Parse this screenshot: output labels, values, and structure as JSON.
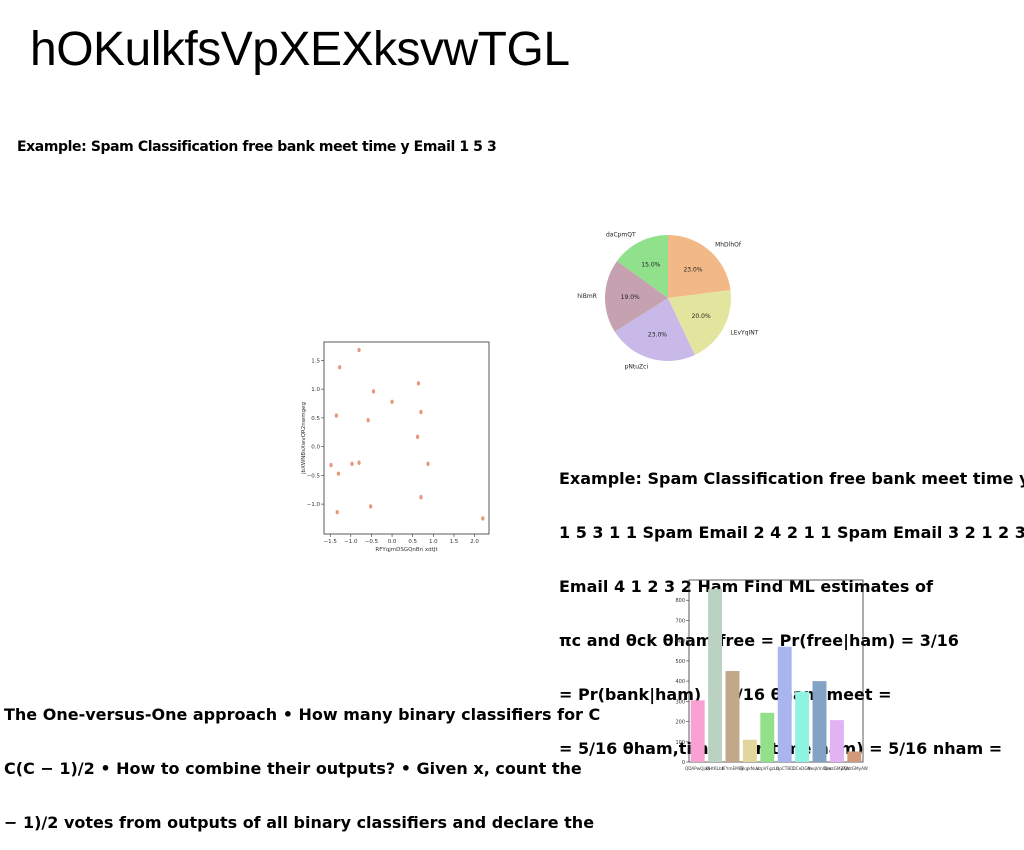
{
  "page": {
    "title": "hOKulkfsVpXEXksvwTGL",
    "subtitle": "Example: Spam Classification free bank meet time y Email 1 5 3"
  },
  "text_blocks": {
    "right": {
      "lines": [
        "Example: Spam Classification free bank meet time y",
        "1 5 3 1 1 Spam Email 2 4 2 1 1 Spam Email 3 2 1 2 3",
        "Email 4 1 2 3 2 Ham Find ML estimates of",
        "πc and θck θham,free = Pr(free|ham) = 3/16",
        "= Pr(bank|ham) = 3/16 θham,meet =",
        "= 5/16 θham,time = Pr(time|ham) = 5/16 nham ="
      ]
    },
    "left": {
      "lines": [
        "The One-versus-One approach • How many binary classifiers for C",
        "C(C − 1)/2 • How to combine their outputs? • Given x, count the",
        "− 1)/2 votes from outputs of all binary classifiers and declare the"
      ]
    }
  },
  "chart_data": [
    {
      "type": "pie",
      "labels": [
        "MhDlhOf",
        "LEvYqINT",
        "pNtuZci",
        "hiBmR",
        "daCpmQT"
      ],
      "values": [
        23.0,
        20.0,
        23.0,
        19.0,
        15.0
      ],
      "pct_labels": [
        "23.0%",
        "20.0%",
        "23.0%",
        "19.0%",
        "15.0%"
      ],
      "colors": [
        "#f2b987",
        "#e3e59f",
        "#c8b9e8",
        "#c6a2b0",
        "#90e08c"
      ],
      "start_angle_deg": 90,
      "direction": "clockwise"
    },
    {
      "type": "scatter",
      "xlabel": "RFYqjmDSGQnBn xdtJt",
      "ylabel": "jbXWNBsXwvQR2nwmgeg",
      "xlim": [
        -1.65,
        2.35
      ],
      "ylim": [
        -1.52,
        1.82
      ],
      "xticks": [
        -1.5,
        -1.0,
        -0.5,
        0.0,
        0.5,
        1.0,
        1.5,
        2.0
      ],
      "xtick_labels": [
        "−1.5",
        "−1.0",
        "−0.5",
        "0.0",
        "0.5",
        "1.0",
        "1.5",
        "2.0"
      ],
      "yticks": [
        -1.0,
        -0.5,
        0.0,
        0.5,
        1.0,
        1.5
      ],
      "ytick_labels": [
        "−1.0",
        "−0.5",
        "0.0",
        "0.5",
        "1.0",
        "1.5"
      ],
      "color": "#e8967a",
      "points": [
        [
          -0.8,
          1.68
        ],
        [
          -1.27,
          1.38
        ],
        [
          -0.45,
          0.96
        ],
        [
          0.0,
          0.78
        ],
        [
          0.64,
          1.1
        ],
        [
          -1.35,
          0.54
        ],
        [
          -0.58,
          0.46
        ],
        [
          0.7,
          0.6
        ],
        [
          0.62,
          0.17
        ],
        [
          -1.48,
          -0.32
        ],
        [
          -0.97,
          -0.3
        ],
        [
          -0.8,
          -0.28
        ],
        [
          0.87,
          -0.3
        ],
        [
          -1.3,
          -0.47
        ],
        [
          0.7,
          -0.88
        ],
        [
          -0.52,
          -1.04
        ],
        [
          -1.33,
          -1.14
        ],
        [
          2.2,
          -1.25
        ]
      ]
    },
    {
      "type": "bar",
      "categories": [
        "QDAPwQjaN",
        "QHtRLbb",
        "IFYmEMBJ",
        "SkgkNuo",
        "VzpVFgzLo",
        "QpCTBD",
        "DCeDGm",
        "NeqVmOsw",
        "QmzGMyAW",
        "ZQnzGMyAW"
      ],
      "tick_labels": [
        "QDAPwQjaN",
        "QHtRLbb",
        "IFYmEMBJ",
        "SkgkNuo",
        "VzpVFgzLo",
        "QpCTBD",
        "DCeDGm",
        "NeqVmOsw",
        "QmzGMyAW",
        "ZQnzGMyAW"
      ],
      "values": [
        305,
        855,
        450,
        110,
        243,
        570,
        348,
        400,
        207,
        52
      ],
      "colors": [
        "#f8a2d3",
        "#b9d2c1",
        "#c3a78b",
        "#e1d79d",
        "#92e08a",
        "#a9b5ee",
        "#8ef3e0",
        "#82a3c3",
        "#e2b2f3",
        "#d29a7a"
      ],
      "ylim": [
        0,
        900
      ],
      "yticks": [
        0,
        100,
        200,
        300,
        400,
        500,
        600,
        700,
        800
      ],
      "ytick_labels": [
        "0",
        "100",
        "200",
        "300",
        "400",
        "500",
        "600",
        "700",
        "800"
      ]
    }
  ]
}
